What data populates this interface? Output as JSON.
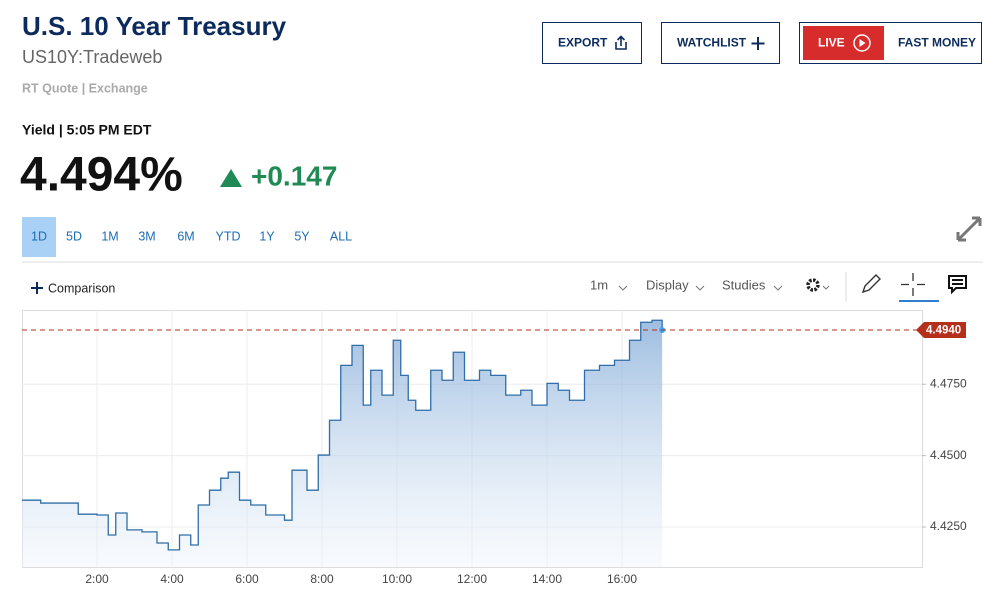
{
  "header": {
    "title": "U.S. 10 Year Treasury",
    "symbol": "US10Y:Tradeweb",
    "source": "RT Quote | Exchange",
    "buttons": [
      "EXPORT",
      "WATCHLIST"
    ],
    "live": "LIVE",
    "show": "FAST MONEY"
  },
  "quote": {
    "time_label": "Yield | 5:05 PM EDT",
    "price": "4.494%",
    "change": "+0.147"
  },
  "periods": [
    "1D",
    "5D",
    "1M",
    "3M",
    "6M",
    "YTD",
    "1Y",
    "5Y",
    "ALL"
  ],
  "toolbar": {
    "comparison": "Comparison",
    "interval": "1m",
    "display": "Display",
    "studies": "Studies"
  },
  "chart_data": {
    "type": "line",
    "color": "#2f6ea8",
    "grid": true,
    "x": [
      0,
      0.5,
      1.0,
      1.5,
      2.0,
      2.3,
      2.5,
      2.8,
      3.2,
      3.6,
      3.9,
      4.2,
      4.5,
      4.7,
      5.0,
      5.3,
      5.5,
      5.8,
      6.1,
      6.5,
      7.0,
      7.2,
      7.6,
      7.9,
      8.2,
      8.5,
      8.8,
      9.1,
      9.3,
      9.6,
      9.9,
      10.1,
      10.3,
      10.5,
      10.9,
      11.2,
      11.5,
      11.8,
      12.2,
      12.5,
      12.9,
      13.3,
      13.6,
      14.0,
      14.3,
      14.6,
      15.0,
      15.4,
      15.8,
      16.2,
      16.5,
      16.8,
      17.07
    ],
    "values": [
      4.4344,
      4.4334,
      4.4334,
      4.4295,
      4.4292,
      4.4222,
      4.4299,
      4.424,
      4.4233,
      4.4194,
      4.417,
      4.4222,
      4.4187,
      4.4327,
      4.4379,
      4.4421,
      4.4442,
      4.4344,
      4.4327,
      4.4292,
      4.4274,
      4.4449,
      4.4379,
      4.4502,
      4.4624,
      4.4816,
      4.4886,
      4.4677,
      4.4799,
      4.4712,
      4.4904,
      4.4781,
      4.4694,
      4.4659,
      4.4799,
      4.4764,
      4.4862,
      4.4764,
      4.4799,
      4.4781,
      4.4712,
      4.4729,
      4.4677,
      4.4753,
      4.4729,
      4.4694,
      4.4799,
      4.4816,
      4.4834,
      4.4904,
      4.4967,
      4.4974,
      4.494
    ],
    "xlim": [
      0,
      24
    ],
    "xticks": [
      {
        "value": 2,
        "label": "2:00"
      },
      {
        "value": 4,
        "label": "4:00"
      },
      {
        "value": 6,
        "label": "6:00"
      },
      {
        "value": 8,
        "label": "8:00"
      },
      {
        "value": 10,
        "label": "10:00"
      },
      {
        "value": 12,
        "label": "12:00"
      },
      {
        "value": 14,
        "label": "14:00"
      },
      {
        "value": 16,
        "label": "16:00"
      }
    ],
    "ylim": [
      4.411,
      4.501
    ],
    "yticks": [
      {
        "value": 4.425,
        "label": "4.4250"
      },
      {
        "value": 4.45,
        "label": "4.4500"
      },
      {
        "value": 4.475,
        "label": "4.4750"
      }
    ],
    "price_marker": {
      "value": 4.494,
      "label": "4.4940"
    }
  }
}
